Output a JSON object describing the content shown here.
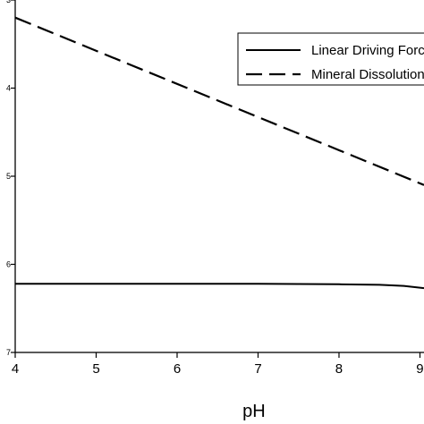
{
  "chart_data": {
    "type": "line",
    "xlabel": "pH",
    "xlim": [
      4,
      9.05
    ],
    "x_ticks": [
      "4",
      "5",
      "6",
      "7",
      "8",
      "9"
    ],
    "y_tick_fragments": [
      "3",
      "4",
      "5",
      "6",
      "7"
    ],
    "series": [
      {
        "name": "Linear Driving Force",
        "style": "solid",
        "color": "#000000",
        "x": [
          4,
          5,
          6,
          7,
          7.5,
          8,
          8.5,
          8.8,
          9.05
        ],
        "y": [
          6.22,
          6.22,
          6.22,
          6.22,
          6.223,
          6.226,
          6.232,
          6.245,
          6.27
        ]
      },
      {
        "name": "Mineral Dissolution",
        "style": "dashed",
        "color": "#000000",
        "x": [
          4,
          9.05
        ],
        "y": [
          3.2,
          5.1
        ]
      }
    ],
    "grid": false,
    "legend_position": "top-right"
  }
}
